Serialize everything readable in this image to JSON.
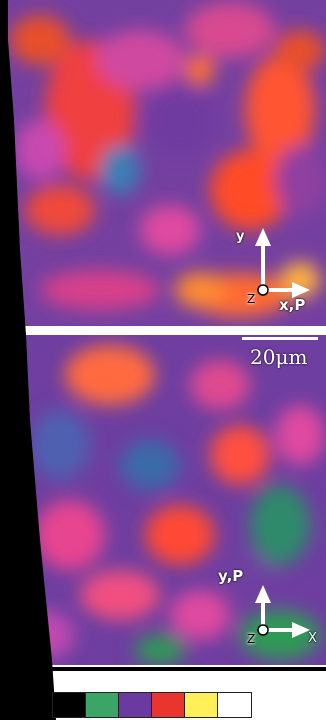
{
  "top_panel": {
    "axes": {
      "vertical": "y",
      "horizontal": "x,P",
      "origin": "Z"
    }
  },
  "bottom_panel": {
    "axes": {
      "vertical": "y,P",
      "horizontal": "X",
      "origin": "Z"
    }
  },
  "scale_bar": {
    "label": "20μm"
  },
  "color_scale": {
    "swatches": [
      "#000000",
      "#3aa566",
      "#6a3aa0",
      "#e8352d",
      "#fff05a",
      "#ffffff"
    ]
  }
}
